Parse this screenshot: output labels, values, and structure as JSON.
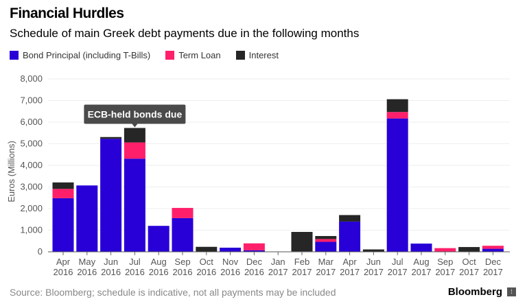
{
  "title": "Financial Hurdles",
  "subtitle": "Schedule of main Greek debt payments due in the following months",
  "source": "Source: Bloomberg; schedule is indicative, not all payments may be included",
  "brand": "Bloomberg",
  "chart_data": {
    "type": "bar",
    "stacked": true,
    "ylabel": "Euros (Millions)",
    "ylim": [
      0,
      8000
    ],
    "yticks": [
      "0",
      "1,000",
      "2,000",
      "3,000",
      "4,000",
      "5,000",
      "6,000",
      "7,000",
      "8,000"
    ],
    "categories": [
      [
        "Apr",
        "2016"
      ],
      [
        "May",
        "2016"
      ],
      [
        "Jun",
        "2016"
      ],
      [
        "Jul",
        "2016"
      ],
      [
        "Aug",
        "2016"
      ],
      [
        "Sep",
        "2016"
      ],
      [
        "Oct",
        "2016"
      ],
      [
        "Nov",
        "2016"
      ],
      [
        "Dec",
        "2016"
      ],
      [
        "Jan",
        "2017"
      ],
      [
        "Feb",
        "2017"
      ],
      [
        "Mar",
        "2017"
      ],
      [
        "Apr",
        "2017"
      ],
      [
        "Jun",
        "2017"
      ],
      [
        "Jul",
        "2017"
      ],
      [
        "Aug",
        "2017"
      ],
      [
        "Sep",
        "2017"
      ],
      [
        "Oct",
        "2017"
      ],
      [
        "Dec",
        "2017"
      ]
    ],
    "series": [
      {
        "name": "Bond Principal (including T-Bills)",
        "color": "#2800d7",
        "values": [
          2480,
          3070,
          5230,
          4310,
          1200,
          1560,
          0,
          190,
          70,
          10,
          20,
          460,
          1400,
          0,
          6170,
          380,
          0,
          0,
          140
        ]
      },
      {
        "name": "Term Loan",
        "color": "#ff1f6a",
        "values": [
          430,
          0,
          0,
          750,
          0,
          470,
          0,
          0,
          320,
          0,
          0,
          130,
          0,
          0,
          300,
          0,
          170,
          0,
          140
        ]
      },
      {
        "name": "Interest",
        "color": "#262626",
        "values": [
          300,
          0,
          80,
          670,
          0,
          0,
          230,
          0,
          0,
          0,
          900,
          140,
          300,
          110,
          590,
          0,
          0,
          220,
          0
        ]
      }
    ],
    "annotation": {
      "text": "ECB-held bonds due",
      "category_index": 3
    }
  }
}
